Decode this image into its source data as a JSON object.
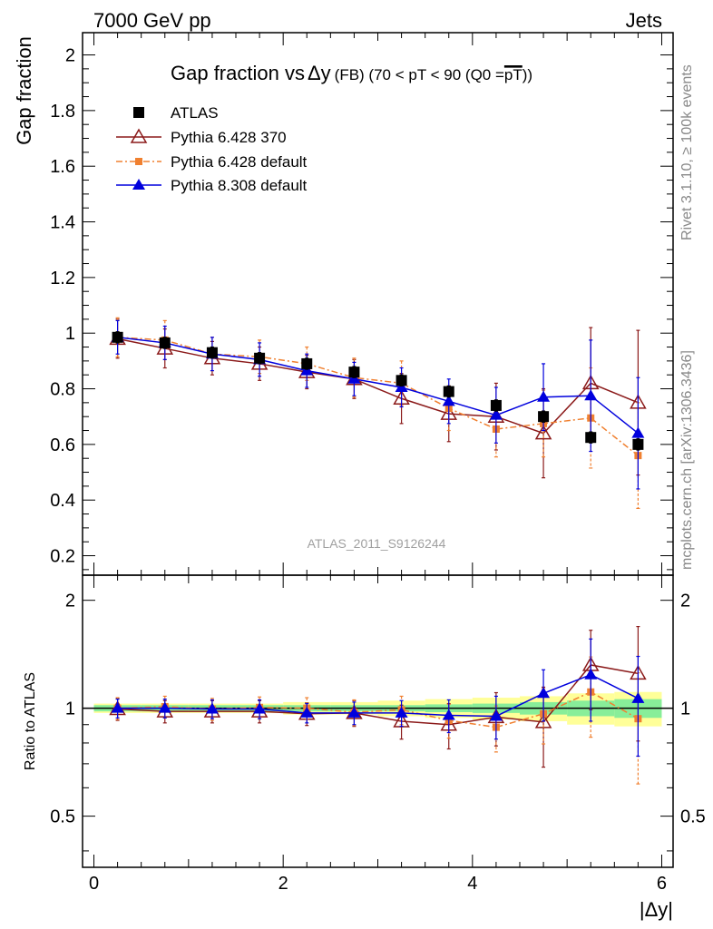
{
  "header": {
    "left": "7000 GeV pp",
    "right": "Jets"
  },
  "side_labels": {
    "upper": "Rivet 3.1.10, ≥ 100k events",
    "lower": "mcplots.cern.ch [arXiv:1306.3436]"
  },
  "chart_data": [
    {
      "type": "scatter",
      "title_main": "Gap fraction vs",
      "title_delta": "Δy",
      "title_detail": "(FB) (70 < pT <  90 (Q0 =",
      "title_bar": "pT",
      "title_close": "))",
      "ylabel": "Gap fraction",
      "watermark": "ATLAS_2011_S9126244",
      "xlim": [
        -0.12,
        6.12
      ],
      "ylim": [
        0.13,
        2.08
      ],
      "yticks": [
        "0.2",
        "0.4",
        "0.6",
        "0.8",
        "1",
        "1.2",
        "1.4",
        "1.6",
        "1.8",
        "2"
      ],
      "x": [
        0.25,
        0.75,
        1.25,
        1.75,
        2.25,
        2.75,
        3.25,
        3.75,
        4.25,
        4.75,
        5.25,
        5.75
      ],
      "series": [
        {
          "name": "ATLAS",
          "color": "#000000",
          "marker": "square",
          "line": "none",
          "values": [
            0.985,
            0.965,
            0.93,
            0.91,
            0.89,
            0.86,
            0.83,
            0.79,
            0.74,
            0.7,
            0.625,
            0.6
          ],
          "errors": [
            0.02,
            0.02,
            0.02,
            0.02,
            0.02,
            0.02,
            0.02,
            0.02,
            0.02,
            0.02,
            0.02,
            0.02
          ]
        },
        {
          "name": "Pythia 6.428 370",
          "color": "#8b1a1a",
          "marker": "triangle-open",
          "line": "solid",
          "values": [
            0.98,
            0.945,
            0.91,
            0.89,
            0.86,
            0.835,
            0.765,
            0.71,
            0.7,
            0.64,
            0.82,
            0.75
          ],
          "errors": [
            0.07,
            0.07,
            0.06,
            0.06,
            0.06,
            0.07,
            0.09,
            0.1,
            0.12,
            0.16,
            0.2,
            0.26
          ]
        },
        {
          "name": "Pythia 6.428 default",
          "color": "#f08030",
          "marker": "square-small",
          "line": "dashdot",
          "values": [
            0.985,
            0.975,
            0.925,
            0.915,
            0.89,
            0.84,
            0.82,
            0.73,
            0.655,
            0.675,
            0.695,
            0.56
          ],
          "errors": [
            0.07,
            0.07,
            0.06,
            0.06,
            0.06,
            0.07,
            0.08,
            0.08,
            0.1,
            0.12,
            0.18,
            0.19
          ]
        },
        {
          "name": "Pythia 8.308 default",
          "color": "#0000dd",
          "marker": "triangle",
          "line": "solid",
          "values": [
            0.985,
            0.965,
            0.925,
            0.905,
            0.865,
            0.835,
            0.805,
            0.755,
            0.705,
            0.77,
            0.775,
            0.64
          ],
          "errors": [
            0.06,
            0.06,
            0.06,
            0.06,
            0.06,
            0.06,
            0.07,
            0.08,
            0.1,
            0.12,
            0.2,
            0.2
          ]
        }
      ]
    },
    {
      "type": "scatter",
      "ylabel": "Ratio to ATLAS",
      "xlabel": "|Δy|",
      "xlim": [
        -0.12,
        6.12
      ],
      "ylim": [
        0.36,
        2.35
      ],
      "log_y": true,
      "xticks": [
        "0",
        "2",
        "4",
        "6"
      ],
      "yticks": [
        "0.5",
        "1",
        "2"
      ],
      "band_inner": [
        0.02,
        0.02,
        0.02,
        0.02,
        0.02,
        0.02,
        0.02,
        0.025,
        0.03,
        0.04,
        0.05,
        0.06
      ],
      "band_outer": [
        0.03,
        0.03,
        0.03,
        0.03,
        0.04,
        0.04,
        0.05,
        0.06,
        0.07,
        0.08,
        0.1,
        0.11
      ],
      "series": [
        {
          "name": "Pythia 6.428 370",
          "values": [
            0.995,
            0.98,
            0.98,
            0.98,
            0.965,
            0.97,
            0.92,
            0.9,
            0.945,
            0.915,
            1.32,
            1.25
          ],
          "errors": [
            0.07,
            0.07,
            0.07,
            0.07,
            0.07,
            0.08,
            0.1,
            0.13,
            0.16,
            0.23,
            0.33,
            0.44
          ]
        },
        {
          "name": "Pythia 6.428 default",
          "values": [
            1.0,
            1.01,
            0.995,
            1.005,
            1.0,
            0.975,
            0.99,
            0.925,
            0.885,
            0.965,
            1.11,
            0.935
          ],
          "errors": [
            0.07,
            0.07,
            0.07,
            0.07,
            0.07,
            0.08,
            0.09,
            0.1,
            0.13,
            0.17,
            0.28,
            0.32
          ]
        },
        {
          "name": "Pythia 8.308 default",
          "values": [
            1.0,
            1.0,
            0.995,
            0.995,
            0.97,
            0.97,
            0.97,
            0.955,
            0.95,
            1.1,
            1.24,
            1.065
          ],
          "errors": [
            0.06,
            0.06,
            0.06,
            0.06,
            0.06,
            0.07,
            0.08,
            0.1,
            0.13,
            0.18,
            0.32,
            0.33
          ]
        }
      ]
    }
  ]
}
